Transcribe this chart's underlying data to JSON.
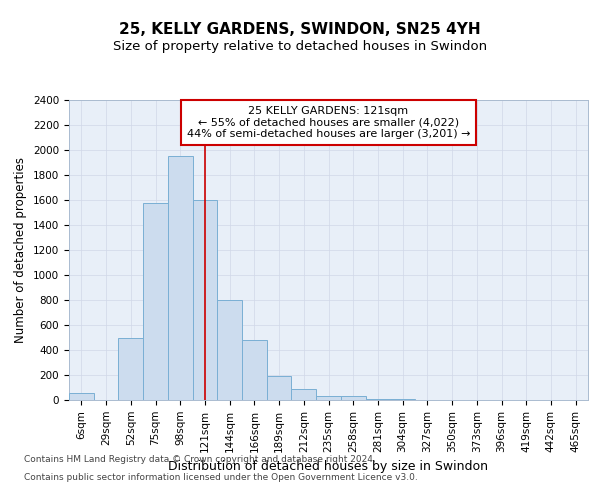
{
  "title1": "25, KELLY GARDENS, SWINDON, SN25 4YH",
  "title2": "Size of property relative to detached houses in Swindon",
  "xlabel": "Distribution of detached houses by size in Swindon",
  "ylabel": "Number of detached properties",
  "categories": [
    "6sqm",
    "29sqm",
    "52sqm",
    "75sqm",
    "98sqm",
    "121sqm",
    "144sqm",
    "166sqm",
    "189sqm",
    "212sqm",
    "235sqm",
    "258sqm",
    "281sqm",
    "304sqm",
    "327sqm",
    "350sqm",
    "373sqm",
    "396sqm",
    "419sqm",
    "442sqm",
    "465sqm"
  ],
  "values": [
    55,
    0,
    500,
    1580,
    1950,
    1600,
    800,
    480,
    190,
    90,
    30,
    30,
    10,
    10,
    0,
    0,
    0,
    0,
    0,
    0,
    0
  ],
  "bar_color": "#ccdcee",
  "bar_edge_color": "#7aafd4",
  "highlight_line_index": 5,
  "vline_color": "#cc0000",
  "annotation_text": "25 KELLY GARDENS: 121sqm\n← 55% of detached houses are smaller (4,022)\n44% of semi-detached houses are larger (3,201) →",
  "annotation_box_facecolor": "#ffffff",
  "annotation_border_color": "#cc0000",
  "ylim": [
    0,
    2400
  ],
  "yticks": [
    0,
    200,
    400,
    600,
    800,
    1000,
    1200,
    1400,
    1600,
    1800,
    2000,
    2200,
    2400
  ],
  "footer1": "Contains HM Land Registry data © Crown copyright and database right 2024.",
  "footer2": "Contains public sector information licensed under the Open Government Licence v3.0.",
  "plot_bg_color": "#e8eff8",
  "fig_bg_color": "#ffffff",
  "grid_color": "#d0d8e8",
  "title1_fontsize": 11,
  "title2_fontsize": 9.5,
  "tick_fontsize": 7.5,
  "ylabel_fontsize": 8.5,
  "xlabel_fontsize": 9,
  "annotation_fontsize": 8,
  "footer_fontsize": 6.5
}
